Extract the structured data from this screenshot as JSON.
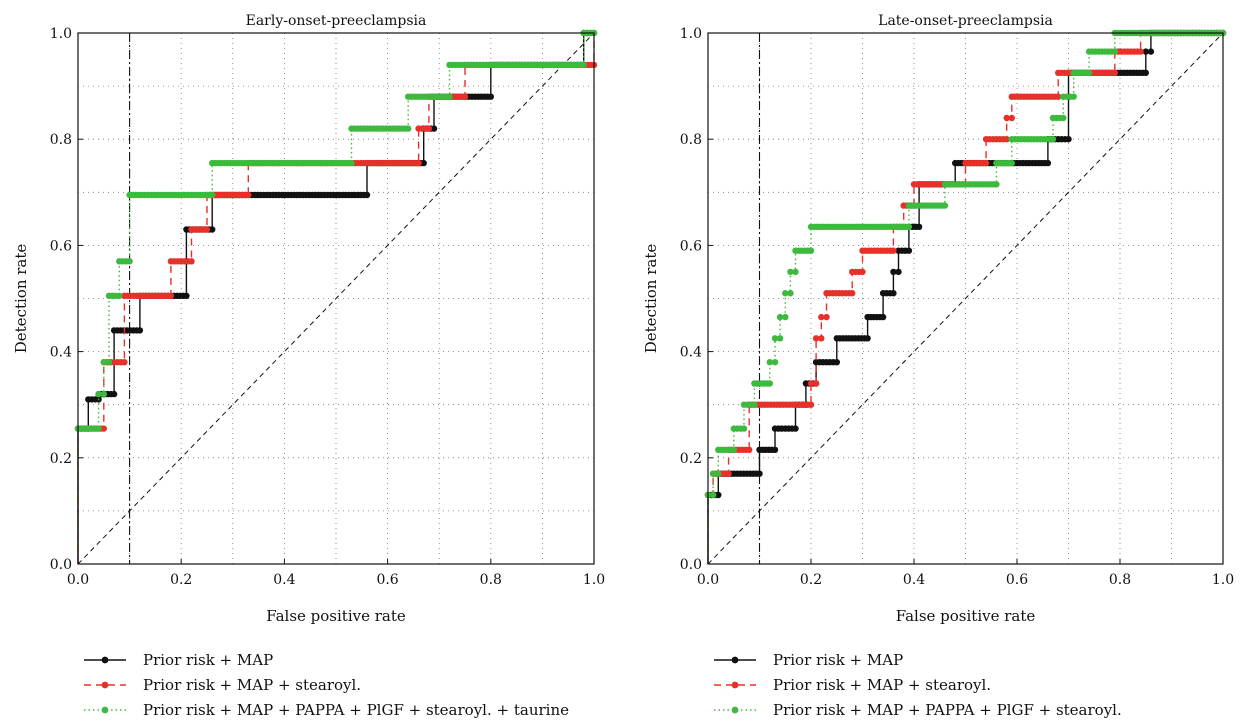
{
  "chart_data": [
    {
      "type": "line",
      "title": "Early-onset-preeclampsia",
      "xlabel": "False positive rate",
      "ylabel": "Detection rate",
      "xlim": [
        0,
        1
      ],
      "ylim": [
        0,
        1
      ],
      "xticks": [
        "0.0",
        "0.2",
        "0.4",
        "0.6",
        "0.8",
        "1.0"
      ],
      "yticks": [
        "0.0",
        "0.2",
        "0.4",
        "0.6",
        "0.8",
        "1.0"
      ],
      "grid": true,
      "reference_diagonal": true,
      "reference_vertical_x": 0.1,
      "legend_position": "bottom",
      "series": [
        {
          "name": "Prior risk + MAP",
          "color": "#111111",
          "style": "solid",
          "points": [
            [
              0,
              0
            ],
            [
              0,
              0.255
            ],
            [
              0.02,
              0.255
            ],
            [
              0.02,
              0.31
            ],
            [
              0.04,
              0.31
            ],
            [
              0.04,
              0.32
            ],
            [
              0.07,
              0.32
            ],
            [
              0.07,
              0.44
            ],
            [
              0.12,
              0.44
            ],
            [
              0.12,
              0.505
            ],
            [
              0.21,
              0.505
            ],
            [
              0.21,
              0.63
            ],
            [
              0.26,
              0.63
            ],
            [
              0.26,
              0.695
            ],
            [
              0.56,
              0.695
            ],
            [
              0.56,
              0.71
            ],
            [
              0.56,
              0.755
            ],
            [
              0.67,
              0.755
            ],
            [
              0.67,
              0.82
            ],
            [
              0.69,
              0.82
            ],
            [
              0.69,
              0.88
            ],
            [
              0.8,
              0.88
            ],
            [
              0.8,
              0.94
            ],
            [
              0.98,
              0.94
            ],
            [
              0.98,
              1.0
            ],
            [
              1.0,
              1.0
            ]
          ]
        },
        {
          "name": "Prior risk + MAP + stearoyl.",
          "color": "#e8302a",
          "style": "dashed",
          "points": [
            [
              0,
              0
            ],
            [
              0,
              0.255
            ],
            [
              0.05,
              0.255
            ],
            [
              0.05,
              0.38
            ],
            [
              0.09,
              0.38
            ],
            [
              0.09,
              0.505
            ],
            [
              0.18,
              0.505
            ],
            [
              0.18,
              0.57
            ],
            [
              0.22,
              0.57
            ],
            [
              0.22,
              0.63
            ],
            [
              0.25,
              0.63
            ],
            [
              0.25,
              0.695
            ],
            [
              0.33,
              0.695
            ],
            [
              0.33,
              0.755
            ],
            [
              0.66,
              0.755
            ],
            [
              0.66,
              0.82
            ],
            [
              0.68,
              0.82
            ],
            [
              0.68,
              0.88
            ],
            [
              0.75,
              0.88
            ],
            [
              0.75,
              0.94
            ],
            [
              1.0,
              0.94
            ],
            [
              1.0,
              1.0
            ]
          ]
        },
        {
          "name": "Prior risk + MAP + PAPPA + PlGF + stearoyl. + taurine",
          "color": "#3dba3d",
          "style": "dotted",
          "points": [
            [
              0,
              0
            ],
            [
              0,
              0.255
            ],
            [
              0.04,
              0.255
            ],
            [
              0.04,
              0.32
            ],
            [
              0.05,
              0.32
            ],
            [
              0.05,
              0.38
            ],
            [
              0.06,
              0.38
            ],
            [
              0.06,
              0.505
            ],
            [
              0.08,
              0.505
            ],
            [
              0.08,
              0.57
            ],
            [
              0.1,
              0.57
            ],
            [
              0.1,
              0.695
            ],
            [
              0.26,
              0.695
            ],
            [
              0.26,
              0.755
            ],
            [
              0.53,
              0.755
            ],
            [
              0.53,
              0.82
            ],
            [
              0.64,
              0.82
            ],
            [
              0.64,
              0.88
            ],
            [
              0.72,
              0.88
            ],
            [
              0.72,
              0.94
            ],
            [
              0.98,
              0.94
            ],
            [
              0.98,
              1.0
            ],
            [
              1.0,
              1.0
            ]
          ]
        }
      ]
    },
    {
      "type": "line",
      "title": "Late-onset-preeclampsia",
      "xlabel": "False positive rate",
      "ylabel": "Detection rate",
      "xlim": [
        0,
        1
      ],
      "ylim": [
        0,
        1
      ],
      "xticks": [
        "0.0",
        "0.2",
        "0.4",
        "0.6",
        "0.8",
        "1.0"
      ],
      "yticks": [
        "0.0",
        "0.2",
        "0.4",
        "0.6",
        "0.8",
        "1.0"
      ],
      "grid": true,
      "reference_diagonal": true,
      "reference_vertical_x": 0.1,
      "legend_position": "bottom",
      "series": [
        {
          "name": "Prior risk + MAP",
          "color": "#111111",
          "style": "solid",
          "points": [
            [
              0,
              0
            ],
            [
              0,
              0.13
            ],
            [
              0.02,
              0.13
            ],
            [
              0.02,
              0.17
            ],
            [
              0.1,
              0.17
            ],
            [
              0.1,
              0.215
            ],
            [
              0.13,
              0.215
            ],
            [
              0.13,
              0.255
            ],
            [
              0.17,
              0.255
            ],
            [
              0.17,
              0.3
            ],
            [
              0.19,
              0.3
            ],
            [
              0.19,
              0.34
            ],
            [
              0.21,
              0.34
            ],
            [
              0.21,
              0.38
            ],
            [
              0.25,
              0.38
            ],
            [
              0.25,
              0.425
            ],
            [
              0.31,
              0.425
            ],
            [
              0.31,
              0.465
            ],
            [
              0.34,
              0.465
            ],
            [
              0.34,
              0.51
            ],
            [
              0.36,
              0.51
            ],
            [
              0.36,
              0.55
            ],
            [
              0.37,
              0.55
            ],
            [
              0.37,
              0.59
            ],
            [
              0.39,
              0.59
            ],
            [
              0.39,
              0.635
            ],
            [
              0.41,
              0.635
            ],
            [
              0.41,
              0.715
            ],
            [
              0.48,
              0.715
            ],
            [
              0.48,
              0.755
            ],
            [
              0.66,
              0.755
            ],
            [
              0.66,
              0.8
            ],
            [
              0.7,
              0.8
            ],
            [
              0.7,
              0.925
            ],
            [
              0.85,
              0.925
            ],
            [
              0.85,
              0.965
            ],
            [
              0.86,
              0.965
            ],
            [
              0.86,
              1.0
            ],
            [
              1.0,
              1.0
            ]
          ]
        },
        {
          "name": "Prior risk + MAP + stearoyl.",
          "color": "#e8302a",
          "style": "dashed",
          "points": [
            [
              0,
              0
            ],
            [
              0,
              0.13
            ],
            [
              0.01,
              0.13
            ],
            [
              0.01,
              0.17
            ],
            [
              0.04,
              0.17
            ],
            [
              0.04,
              0.215
            ],
            [
              0.08,
              0.215
            ],
            [
              0.08,
              0.3
            ],
            [
              0.2,
              0.3
            ],
            [
              0.2,
              0.34
            ],
            [
              0.21,
              0.34
            ],
            [
              0.21,
              0.425
            ],
            [
              0.22,
              0.425
            ],
            [
              0.22,
              0.465
            ],
            [
              0.23,
              0.465
            ],
            [
              0.23,
              0.51
            ],
            [
              0.28,
              0.51
            ],
            [
              0.28,
              0.55
            ],
            [
              0.3,
              0.55
            ],
            [
              0.3,
              0.59
            ],
            [
              0.36,
              0.59
            ],
            [
              0.36,
              0.635
            ],
            [
              0.38,
              0.635
            ],
            [
              0.38,
              0.675
            ],
            [
              0.4,
              0.675
            ],
            [
              0.4,
              0.715
            ],
            [
              0.5,
              0.715
            ],
            [
              0.5,
              0.755
            ],
            [
              0.54,
              0.755
            ],
            [
              0.54,
              0.8
            ],
            [
              0.58,
              0.8
            ],
            [
              0.58,
              0.84
            ],
            [
              0.59,
              0.84
            ],
            [
              0.59,
              0.88
            ],
            [
              0.68,
              0.88
            ],
            [
              0.68,
              0.925
            ],
            [
              0.79,
              0.925
            ],
            [
              0.79,
              0.965
            ],
            [
              0.84,
              0.965
            ],
            [
              0.84,
              1.0
            ],
            [
              1.0,
              1.0
            ]
          ]
        },
        {
          "name": "Prior risk + MAP + PAPPA + PlGF + stearoyl.",
          "color": "#3dba3d",
          "style": "dotted",
          "points": [
            [
              0,
              0
            ],
            [
              0,
              0.13
            ],
            [
              0.01,
              0.13
            ],
            [
              0.01,
              0.17
            ],
            [
              0.02,
              0.17
            ],
            [
              0.02,
              0.215
            ],
            [
              0.05,
              0.215
            ],
            [
              0.05,
              0.255
            ],
            [
              0.07,
              0.255
            ],
            [
              0.07,
              0.3
            ],
            [
              0.09,
              0.3
            ],
            [
              0.09,
              0.34
            ],
            [
              0.12,
              0.34
            ],
            [
              0.12,
              0.38
            ],
            [
              0.13,
              0.38
            ],
            [
              0.13,
              0.425
            ],
            [
              0.14,
              0.425
            ],
            [
              0.14,
              0.465
            ],
            [
              0.15,
              0.465
            ],
            [
              0.15,
              0.51
            ],
            [
              0.16,
              0.51
            ],
            [
              0.16,
              0.55
            ],
            [
              0.17,
              0.55
            ],
            [
              0.17,
              0.59
            ],
            [
              0.2,
              0.59
            ],
            [
              0.2,
              0.635
            ],
            [
              0.39,
              0.635
            ],
            [
              0.39,
              0.675
            ],
            [
              0.46,
              0.675
            ],
            [
              0.46,
              0.715
            ],
            [
              0.56,
              0.715
            ],
            [
              0.56,
              0.755
            ],
            [
              0.59,
              0.755
            ],
            [
              0.59,
              0.8
            ],
            [
              0.67,
              0.8
            ],
            [
              0.67,
              0.84
            ],
            [
              0.69,
              0.84
            ],
            [
              0.69,
              0.88
            ],
            [
              0.71,
              0.88
            ],
            [
              0.71,
              0.925
            ],
            [
              0.74,
              0.925
            ],
            [
              0.74,
              0.965
            ],
            [
              0.79,
              0.965
            ],
            [
              0.79,
              1.0
            ],
            [
              1.0,
              1.0
            ]
          ]
        }
      ]
    }
  ]
}
